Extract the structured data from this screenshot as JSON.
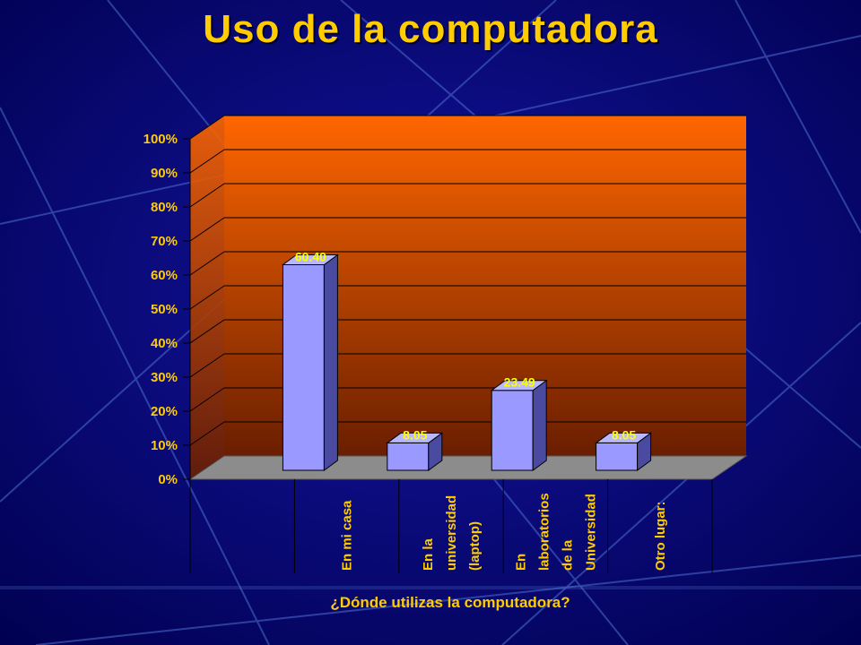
{
  "slide": {
    "title": "Uso de la computadora"
  },
  "colors": {
    "background": "#03036a",
    "title": "#ffcc00",
    "wall_top": "#ff6600",
    "wall_bottom": "#6a1e00",
    "floor": "#8c8c8c",
    "bar_front": "#9999ff",
    "bar_side": "#4a4aa0",
    "bar_top": "#b8b8ff",
    "text": "#ffcc00",
    "data_label": "#ffff00"
  },
  "chart_data": {
    "type": "bar",
    "title": "",
    "categories": [
      [
        "En mi casa"
      ],
      [
        "En la",
        "universidad",
        "(laptop)"
      ],
      [
        "En",
        "laboratorios",
        "de la",
        "Universidad"
      ],
      [
        "Otro lugar:"
      ]
    ],
    "values": [
      60.4,
      8.05,
      23.49,
      8.05
    ],
    "data_labels": [
      "60.40",
      "8.05",
      "23.49",
      "8.05"
    ],
    "xlabel": "¿Dónde utilizas la computadora?",
    "ylabel": "",
    "ylim": [
      0,
      100
    ],
    "yticks": [
      "0%",
      "10%",
      "20%",
      "30%",
      "40%",
      "50%",
      "60%",
      "70%",
      "80%",
      "90%",
      "100%"
    ],
    "grid": true,
    "three_d": true
  }
}
